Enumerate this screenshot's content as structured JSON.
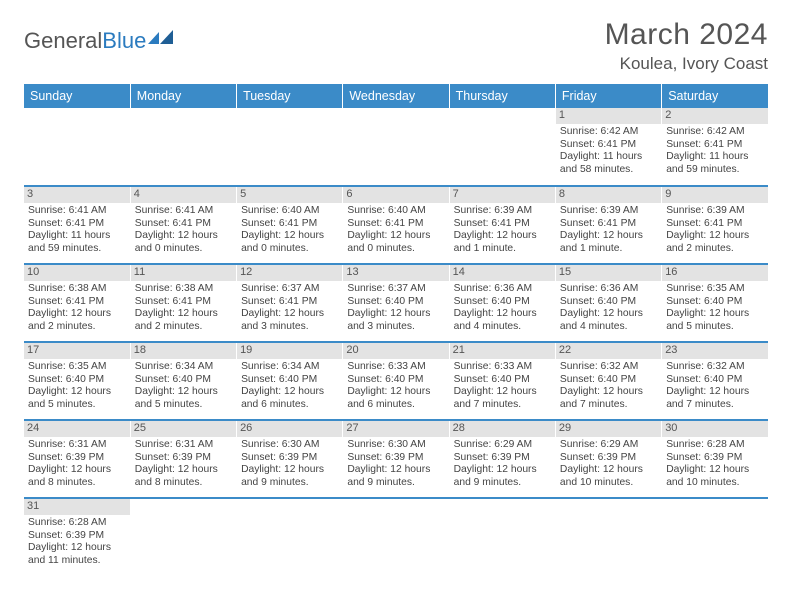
{
  "logo": {
    "general": "General",
    "blue": "Blue"
  },
  "title": {
    "month": "March 2024",
    "location": "Koulea, Ivory Coast"
  },
  "colors": {
    "header_bg": "#3b8bc8",
    "header_text": "#ffffff",
    "daynum_bg": "#e3e3e3",
    "row_divider": "#3b8bc8",
    "body_text": "#444444",
    "title_text": "#555555"
  },
  "dayNames": [
    "Sunday",
    "Monday",
    "Tuesday",
    "Wednesday",
    "Thursday",
    "Friday",
    "Saturday"
  ],
  "weeks": [
    [
      null,
      null,
      null,
      null,
      null,
      {
        "d": "1",
        "sr": "6:42 AM",
        "ss": "6:41 PM",
        "dl": "11 hours and 58 minutes."
      },
      {
        "d": "2",
        "sr": "6:42 AM",
        "ss": "6:41 PM",
        "dl": "11 hours and 59 minutes."
      }
    ],
    [
      {
        "d": "3",
        "sr": "6:41 AM",
        "ss": "6:41 PM",
        "dl": "11 hours and 59 minutes."
      },
      {
        "d": "4",
        "sr": "6:41 AM",
        "ss": "6:41 PM",
        "dl": "12 hours and 0 minutes."
      },
      {
        "d": "5",
        "sr": "6:40 AM",
        "ss": "6:41 PM",
        "dl": "12 hours and 0 minutes."
      },
      {
        "d": "6",
        "sr": "6:40 AM",
        "ss": "6:41 PM",
        "dl": "12 hours and 0 minutes."
      },
      {
        "d": "7",
        "sr": "6:39 AM",
        "ss": "6:41 PM",
        "dl": "12 hours and 1 minute."
      },
      {
        "d": "8",
        "sr": "6:39 AM",
        "ss": "6:41 PM",
        "dl": "12 hours and 1 minute."
      },
      {
        "d": "9",
        "sr": "6:39 AM",
        "ss": "6:41 PM",
        "dl": "12 hours and 2 minutes."
      }
    ],
    [
      {
        "d": "10",
        "sr": "6:38 AM",
        "ss": "6:41 PM",
        "dl": "12 hours and 2 minutes."
      },
      {
        "d": "11",
        "sr": "6:38 AM",
        "ss": "6:41 PM",
        "dl": "12 hours and 2 minutes."
      },
      {
        "d": "12",
        "sr": "6:37 AM",
        "ss": "6:41 PM",
        "dl": "12 hours and 3 minutes."
      },
      {
        "d": "13",
        "sr": "6:37 AM",
        "ss": "6:40 PM",
        "dl": "12 hours and 3 minutes."
      },
      {
        "d": "14",
        "sr": "6:36 AM",
        "ss": "6:40 PM",
        "dl": "12 hours and 4 minutes."
      },
      {
        "d": "15",
        "sr": "6:36 AM",
        "ss": "6:40 PM",
        "dl": "12 hours and 4 minutes."
      },
      {
        "d": "16",
        "sr": "6:35 AM",
        "ss": "6:40 PM",
        "dl": "12 hours and 5 minutes."
      }
    ],
    [
      {
        "d": "17",
        "sr": "6:35 AM",
        "ss": "6:40 PM",
        "dl": "12 hours and 5 minutes."
      },
      {
        "d": "18",
        "sr": "6:34 AM",
        "ss": "6:40 PM",
        "dl": "12 hours and 5 minutes."
      },
      {
        "d": "19",
        "sr": "6:34 AM",
        "ss": "6:40 PM",
        "dl": "12 hours and 6 minutes."
      },
      {
        "d": "20",
        "sr": "6:33 AM",
        "ss": "6:40 PM",
        "dl": "12 hours and 6 minutes."
      },
      {
        "d": "21",
        "sr": "6:33 AM",
        "ss": "6:40 PM",
        "dl": "12 hours and 7 minutes."
      },
      {
        "d": "22",
        "sr": "6:32 AM",
        "ss": "6:40 PM",
        "dl": "12 hours and 7 minutes."
      },
      {
        "d": "23",
        "sr": "6:32 AM",
        "ss": "6:40 PM",
        "dl": "12 hours and 7 minutes."
      }
    ],
    [
      {
        "d": "24",
        "sr": "6:31 AM",
        "ss": "6:39 PM",
        "dl": "12 hours and 8 minutes."
      },
      {
        "d": "25",
        "sr": "6:31 AM",
        "ss": "6:39 PM",
        "dl": "12 hours and 8 minutes."
      },
      {
        "d": "26",
        "sr": "6:30 AM",
        "ss": "6:39 PM",
        "dl": "12 hours and 9 minutes."
      },
      {
        "d": "27",
        "sr": "6:30 AM",
        "ss": "6:39 PM",
        "dl": "12 hours and 9 minutes."
      },
      {
        "d": "28",
        "sr": "6:29 AM",
        "ss": "6:39 PM",
        "dl": "12 hours and 9 minutes."
      },
      {
        "d": "29",
        "sr": "6:29 AM",
        "ss": "6:39 PM",
        "dl": "12 hours and 10 minutes."
      },
      {
        "d": "30",
        "sr": "6:28 AM",
        "ss": "6:39 PM",
        "dl": "12 hours and 10 minutes."
      }
    ],
    [
      {
        "d": "31",
        "sr": "6:28 AM",
        "ss": "6:39 PM",
        "dl": "12 hours and 11 minutes."
      },
      null,
      null,
      null,
      null,
      null,
      null
    ]
  ],
  "labels": {
    "sunrise": "Sunrise:",
    "sunset": "Sunset:",
    "daylight": "Daylight:"
  }
}
